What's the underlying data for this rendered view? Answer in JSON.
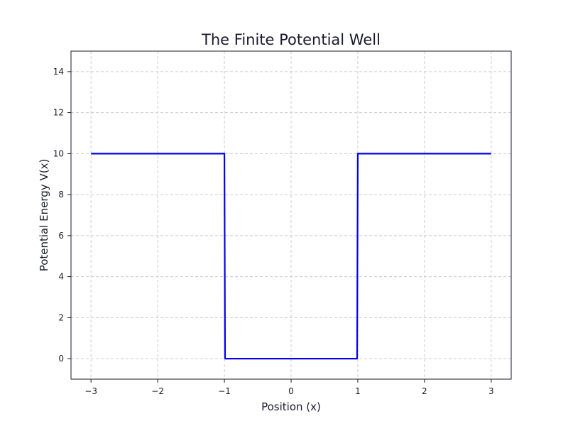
{
  "chart_data": {
    "type": "line",
    "title": "The Finite Potential Well",
    "xlabel": "Position (x)",
    "ylabel": "Potential Energy V(x)",
    "xlim": [
      -3.3,
      3.3
    ],
    "ylim": [
      -1.0,
      15.0
    ],
    "xticks": [
      -3,
      -2,
      -1,
      0,
      1,
      2,
      3
    ],
    "xtick_labels": [
      "−3",
      "−2",
      "−1",
      "0",
      "1",
      "2",
      "3"
    ],
    "yticks": [
      0,
      2,
      4,
      6,
      8,
      10,
      12,
      14
    ],
    "ytick_labels": [
      "0",
      "2",
      "4",
      "6",
      "8",
      "10",
      "12",
      "14"
    ],
    "grid": true,
    "series": [
      {
        "x": [
          -3,
          -1.0,
          -0.99,
          0.99,
          1.0,
          3
        ],
        "y": [
          10,
          10,
          0,
          0,
          10,
          10
        ],
        "color": "#0000ee"
      }
    ]
  }
}
